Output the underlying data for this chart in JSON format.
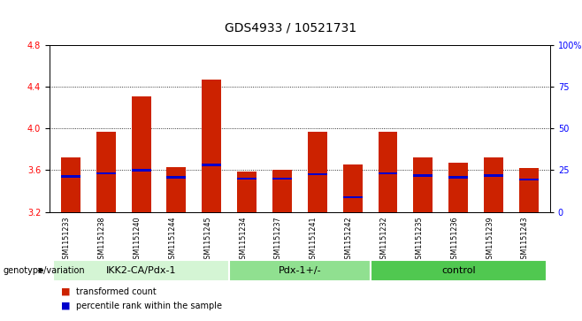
{
  "title": "GDS4933 / 10521731",
  "samples": [
    "GSM1151233",
    "GSM1151238",
    "GSM1151240",
    "GSM1151244",
    "GSM1151245",
    "GSM1151234",
    "GSM1151237",
    "GSM1151241",
    "GSM1151242",
    "GSM1151232",
    "GSM1151235",
    "GSM1151236",
    "GSM1151239",
    "GSM1151243"
  ],
  "transformed_count": [
    3.72,
    3.97,
    4.31,
    3.63,
    4.47,
    3.59,
    3.6,
    3.97,
    3.65,
    3.97,
    3.72,
    3.67,
    3.72,
    3.62
  ],
  "percentile_rank": [
    3.54,
    3.57,
    3.6,
    3.53,
    3.65,
    3.52,
    3.52,
    3.56,
    3.34,
    3.57,
    3.55,
    3.53,
    3.55,
    3.51
  ],
  "bar_bottom": 3.2,
  "ylim": [
    3.2,
    4.8
  ],
  "yticks": [
    3.2,
    3.6,
    4.0,
    4.4,
    4.8
  ],
  "right_yticks": [
    0,
    25,
    50,
    75,
    100
  ],
  "right_ytick_labels": [
    "0",
    "25",
    "50",
    "75",
    "100%"
  ],
  "groups": [
    {
      "label": "IKK2-CA/Pdx-1",
      "start": 0,
      "end": 5,
      "color": "#d4f5d4"
    },
    {
      "label": "Pdx-1+/-",
      "start": 5,
      "end": 9,
      "color": "#90e090"
    },
    {
      "label": "control",
      "start": 9,
      "end": 14,
      "color": "#50c850"
    }
  ],
  "bar_color_red": "#cc2200",
  "bar_color_blue": "#0000cc",
  "genotype_label": "genotype/variation",
  "legend_items": [
    {
      "label": "transformed count",
      "color": "#cc2200"
    },
    {
      "label": "percentile rank within the sample",
      "color": "#0000cc"
    }
  ],
  "background_color": "#ffffff",
  "plot_bg_color": "#ffffff",
  "tick_bg_color": "#d8d8d8",
  "bar_width": 0.55,
  "title_fontsize": 10,
  "tick_fontsize": 7,
  "label_fontsize": 7.5
}
